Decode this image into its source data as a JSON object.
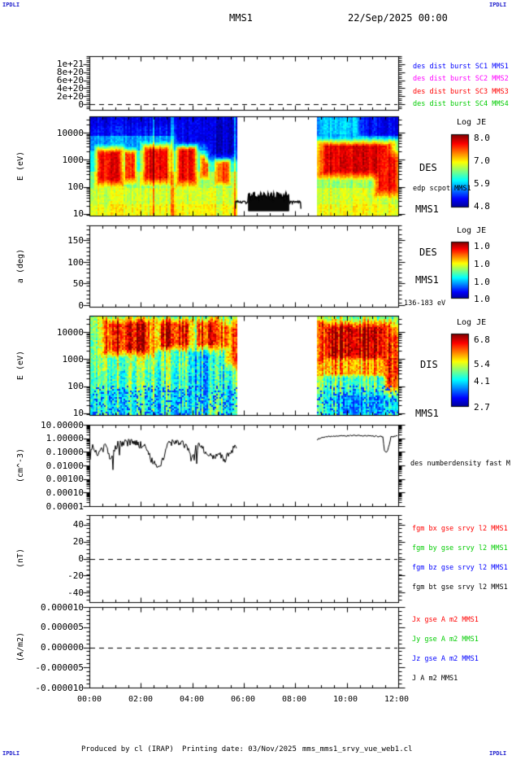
{
  "header": {
    "corner_label": "IPDLI",
    "title": "MMS1",
    "datetime": "22/Sep/2025 00:00"
  },
  "footer": {
    "produced": "Produced by cl (IRAP)",
    "printing": "Printing date: 03/Nov/2025",
    "script": "mms_mms1_srvy_vue_web1.cl",
    "corner_label": "IPDLI"
  },
  "x_axis": {
    "tick_labels": [
      "00:00",
      "02:00",
      "04:00",
      "06:00",
      "08:00",
      "10:00",
      "12:00"
    ]
  },
  "panels": [
    {
      "name": "des-dist-burst",
      "ylabel": "",
      "ytick_labels": [
        "1e+21",
        "8e+20",
        "6e+20",
        "4e+20",
        "2e+20",
        "0"
      ],
      "right_labels": [
        {
          "text": "des dist burst SC1 MMS1",
          "color": "#0000ff"
        },
        {
          "text": "des dist burst SC2 MMS2",
          "color": "#ff00ff"
        },
        {
          "text": "des dist burst SC3 MMS3",
          "color": "#ff0000"
        },
        {
          "text": "des dist burst SC4 MMS4",
          "color": "#00cc00"
        }
      ]
    },
    {
      "name": "des-energy-spectrogram",
      "ylabel": "E (eV)",
      "ytick_labels": [
        "10000",
        "1000",
        "100",
        "10"
      ],
      "right_labels": [
        {
          "text": "DES",
          "color": "#000000"
        },
        {
          "text": "edp scpot MMS1",
          "color": "#000000"
        },
        {
          "text": "MMS1",
          "color": "#000000"
        }
      ],
      "colorbar": {
        "title": "Log JE",
        "tick_labels": [
          "8.0",
          "7.0",
          "5.9",
          "4.8"
        ]
      }
    },
    {
      "name": "des-pitch-angle",
      "ylabel": "a (deg)",
      "ytick_labels": [
        "150",
        "100",
        "50",
        "0"
      ],
      "right_labels": [
        {
          "text": "DES",
          "color": "#000000"
        },
        {
          "text": "MMS1",
          "color": "#000000"
        },
        {
          "text": "136-183 eV",
          "color": "#000000"
        }
      ],
      "colorbar": {
        "title": "Log JE",
        "tick_labels": [
          "1.0",
          "1.0",
          "1.0",
          "1.0"
        ]
      }
    },
    {
      "name": "dis-energy-spectrogram",
      "ylabel": "E (eV)",
      "ytick_labels": [
        "10000",
        "1000",
        "100",
        "10"
      ],
      "right_labels": [
        {
          "text": "DIS",
          "color": "#000000"
        },
        {
          "text": "MMS1",
          "color": "#000000"
        }
      ],
      "colorbar": {
        "title": "Log JE",
        "tick_labels": [
          "6.8",
          "5.4",
          "4.1",
          "2.7"
        ]
      }
    },
    {
      "name": "des-number-density",
      "ylabel": "(cm^-3)",
      "ytick_labels": [
        "10.00000",
        "1.00000",
        "0.10000",
        "0.01000",
        "0.00100",
        "0.00010",
        "0.00001"
      ],
      "right_labels": [
        {
          "text": "des numberdensity fast M",
          "color": "#000000"
        }
      ]
    },
    {
      "name": "fgm-magnetic-field",
      "ylabel": "(nT)",
      "ytick_labels": [
        "40",
        "20",
        "0",
        "-20",
        "-40"
      ],
      "right_labels": [
        {
          "text": "fgm bx gse srvy l2 MMS1",
          "color": "#ff0000"
        },
        {
          "text": "fgm by gse srvy l2 MMS1",
          "color": "#00cc00"
        },
        {
          "text": "fgm bz gse srvy l2 MMS1",
          "color": "#0000ff"
        },
        {
          "text": "fgm bt gse srvy l2 MMS1",
          "color": "#000000"
        }
      ]
    },
    {
      "name": "current-density",
      "ylabel": "(A/m2)",
      "ytick_labels": [
        "0.000010",
        "0.000005",
        "0.000000",
        "-0.000005",
        "-0.000010"
      ],
      "right_labels": [
        {
          "text": "Jx gse A m2 MMS1",
          "color": "#ff0000"
        },
        {
          "text": "Jy gse A m2 MMS1",
          "color": "#00cc00"
        },
        {
          "text": "Jz gse A m2 MMS1",
          "color": "#0000ff"
        },
        {
          "text": "J A m2 MMS1",
          "color": "#000000"
        }
      ]
    }
  ],
  "chart_data": [
    {
      "panel": "des-dist-burst",
      "type": "line",
      "x_range": [
        "00:00",
        "12:30"
      ],
      "ylim": [
        0,
        1.2e+21
      ],
      "series": [
        "SC1",
        "SC2",
        "SC3",
        "SC4"
      ],
      "note": "no data plotted; dashed reference line at 0"
    },
    {
      "panel": "des-energy-spectrogram",
      "type": "heatmap",
      "x_range": [
        "00:00",
        "12:30"
      ],
      "y_range_ev": [
        10,
        40000
      ],
      "log_je_range": [
        4.8,
        8.0
      ],
      "gap": [
        0.479,
        0.737
      ],
      "col_noise": 0.05,
      "cell_noise": 0.04,
      "streak_p": 0.06,
      "base_bands": [
        [
          0,
          0.2,
          0.14
        ],
        [
          0.2,
          0.35,
          0.28
        ],
        [
          0.35,
          0.55,
          0.4
        ],
        [
          0.55,
          0.72,
          0.52
        ],
        [
          0.72,
          0.88,
          0.58
        ],
        [
          0.88,
          1,
          0.62
        ]
      ],
      "features": [
        {
          "t0": 0.0,
          "t1": 0.48,
          "y0": 0.0,
          "y1": 0.1,
          "v": 0.1
        },
        {
          "t0": 0.025,
          "t1": 0.105,
          "y0": 0.33,
          "y1": 0.68,
          "v": 0.88
        },
        {
          "t0": 0.115,
          "t1": 0.15,
          "y0": 0.35,
          "y1": 0.65,
          "v": 0.84
        },
        {
          "t0": 0.175,
          "t1": 0.26,
          "y0": 0.3,
          "y1": 0.66,
          "v": 0.88
        },
        {
          "t0": 0.285,
          "t1": 0.345,
          "y0": 0.3,
          "y1": 0.68,
          "v": 0.88
        },
        {
          "t0": 0.28,
          "t1": 0.4,
          "y0": 0.0,
          "y1": 0.28,
          "v": 0.1
        },
        {
          "t0": 0.36,
          "t1": 0.385,
          "y0": 0.4,
          "y1": 0.62,
          "v": 0.78
        },
        {
          "t0": 0.385,
          "t1": 0.48,
          "y0": 0.02,
          "y1": 0.42,
          "v": 0.07
        },
        {
          "t0": 0.41,
          "t1": 0.455,
          "y0": 0.45,
          "y1": 0.68,
          "v": 0.8
        },
        {
          "t0": 0.737,
          "t1": 0.99,
          "y0": 0.26,
          "y1": 0.6,
          "v": 0.9
        },
        {
          "t0": 0.93,
          "t1": 1.0,
          "y0": 0.4,
          "y1": 0.78,
          "v": 0.88
        },
        {
          "t0": 0.737,
          "t1": 0.88,
          "y0": 0.0,
          "y1": 0.2,
          "v": 0.33
        },
        {
          "t0": 0.88,
          "t1": 1.0,
          "y0": 0.0,
          "y1": 0.18,
          "v": 0.12
        }
      ],
      "scpot_overlay": {
        "t0": 0.473,
        "t1": 0.685,
        "line_frac": 0.865,
        "fill": {
          "t0": 0.515,
          "t1": 0.645,
          "top": 0.8,
          "bot": 0.955
        }
      }
    },
    {
      "panel": "des-pitch-angle",
      "type": "heatmap",
      "x_range": [
        "00:00",
        "12:30"
      ],
      "y_range_deg": [
        0,
        180
      ],
      "energy_band": "136-183 eV",
      "log_je_range": [
        1.0,
        1.0
      ],
      "note": "no data plotted (blank panel, colorbar ticks all 1.0)"
    },
    {
      "panel": "dis-energy-spectrogram",
      "type": "heatmap",
      "x_range": [
        "00:00",
        "12:30"
      ],
      "y_range_ev": [
        10,
        40000
      ],
      "log_je_range": [
        2.7,
        6.8
      ],
      "gap": [
        0.479,
        0.735
      ],
      "col_noise": 0.13,
      "cell_noise": 0.09,
      "streak_p": 0.0,
      "speckle": {
        "y0": 0.7,
        "p": 0.18,
        "v": 0.18
      },
      "base_bands": [
        [
          0,
          0.15,
          0.52
        ],
        [
          0.15,
          0.55,
          0.5
        ],
        [
          0.55,
          0.75,
          0.46
        ],
        [
          0.75,
          1,
          0.4
        ]
      ],
      "features": [
        {
          "t0": 0.05,
          "t1": 0.2,
          "y0": 0.05,
          "y1": 0.38,
          "v": 0.88
        },
        {
          "t0": 0.22,
          "t1": 0.33,
          "y0": 0.05,
          "y1": 0.33,
          "v": 0.88
        },
        {
          "t0": 0.35,
          "t1": 0.41,
          "y0": 0.05,
          "y1": 0.35,
          "v": 0.85
        },
        {
          "t0": 0.42,
          "t1": 0.48,
          "y0": 0.08,
          "y1": 0.5,
          "v": 0.78
        },
        {
          "t0": 0.33,
          "t1": 0.44,
          "y0": 0.35,
          "y1": 0.8,
          "v": 0.35
        },
        {
          "t0": 0.75,
          "t1": 0.97,
          "y0": 0.08,
          "y1": 0.45,
          "v": 0.93
        },
        {
          "t0": 0.74,
          "t1": 1.0,
          "y0": 0.45,
          "y1": 0.6,
          "v": 0.72
        },
        {
          "t0": 0.96,
          "t1": 1.0,
          "y0": 0.15,
          "y1": 0.75,
          "v": 0.86
        },
        {
          "t0": 0.8,
          "t1": 0.95,
          "y0": 0.8,
          "y1": 1.0,
          "v": 0.3
        }
      ]
    },
    {
      "panel": "des-number-density",
      "type": "line",
      "x_range": [
        "00:00",
        "12:30"
      ],
      "ylim_cm3": [
        1e-05,
        10
      ],
      "yscale": "log",
      "log_top": 1,
      "log_bot": -5,
      "gap": [
        0.479,
        0.735
      ],
      "segments": [
        {
          "noise": 0.28,
          "spike_p": 0.05,
          "points": [
            [
              0.0,
              -1.6
            ],
            [
              0.01,
              -0.5
            ],
            [
              0.03,
              -1.2
            ],
            [
              0.05,
              -0.6
            ],
            [
              0.07,
              -1.5
            ],
            [
              0.09,
              -0.5
            ],
            [
              0.11,
              -0.35
            ],
            [
              0.14,
              -0.3
            ],
            [
              0.16,
              -0.5
            ],
            [
              0.18,
              -0.4
            ],
            [
              0.2,
              -1.6
            ],
            [
              0.22,
              -2.0
            ],
            [
              0.24,
              -1.6
            ],
            [
              0.255,
              -0.4
            ],
            [
              0.28,
              -0.3
            ],
            [
              0.3,
              -0.35
            ],
            [
              0.315,
              -0.5
            ],
            [
              0.33,
              -1.6
            ],
            [
              0.34,
              -0.9
            ],
            [
              0.36,
              -0.4
            ],
            [
              0.375,
              -1.0
            ],
            [
              0.4,
              -1.5
            ],
            [
              0.42,
              -1.2
            ],
            [
              0.44,
              -1.5
            ],
            [
              0.455,
              -1.0
            ],
            [
              0.468,
              -0.8
            ],
            [
              0.478,
              -0.6
            ]
          ]
        },
        {
          "noise": 0.05,
          "spike_p": 0.0,
          "points": [
            [
              0.737,
              -0.1
            ],
            [
              0.76,
              0.12
            ],
            [
              0.8,
              0.15
            ],
            [
              0.85,
              0.22
            ],
            [
              0.9,
              0.18
            ],
            [
              0.93,
              0.15
            ],
            [
              0.95,
              0.12
            ],
            [
              0.955,
              -0.9
            ],
            [
              0.962,
              -1.1
            ],
            [
              0.97,
              -0.6
            ],
            [
              0.976,
              0.1
            ],
            [
              1.0,
              0.18
            ]
          ]
        }
      ]
    },
    {
      "panel": "fgm-magnetic-field",
      "type": "line",
      "x_range": [
        "00:00",
        "12:30"
      ],
      "ylim_nt": [
        -51,
        51
      ],
      "series": [
        "bx",
        "by",
        "bz",
        "bt"
      ],
      "note": "no data plotted; dashed reference line at 0"
    },
    {
      "panel": "current-density",
      "type": "line",
      "x_range": [
        "00:00",
        "12:30"
      ],
      "ylim_am2": [
        -1e-05,
        1e-05
      ],
      "series": [
        "Jx",
        "Jy",
        "Jz",
        "J"
      ],
      "note": "no data plotted; dashed reference line at 0"
    }
  ]
}
